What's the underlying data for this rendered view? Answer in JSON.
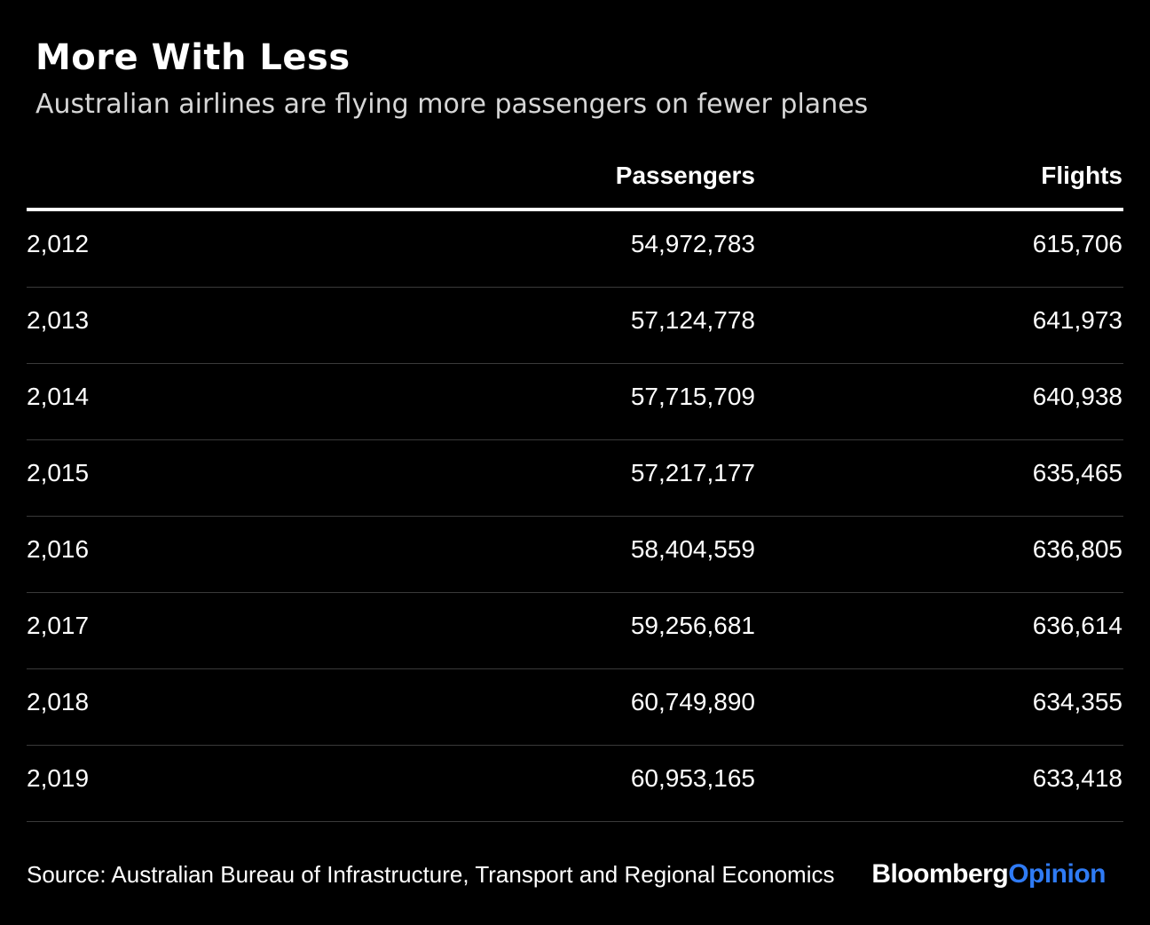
{
  "title": "More With Less",
  "subtitle": "Australian airlines are flying more passengers on fewer planes",
  "chart_data": {
    "type": "table",
    "title": "More With Less",
    "subtitle": "Australian airlines are flying more passengers on fewer planes",
    "columns": [
      "",
      "Passengers",
      "Flights"
    ],
    "rows": [
      {
        "year": "2,012",
        "passengers": "54,972,783",
        "flights": "615,706"
      },
      {
        "year": "2,013",
        "passengers": "57,124,778",
        "flights": "641,973"
      },
      {
        "year": "2,014",
        "passengers": "57,715,709",
        "flights": "640,938"
      },
      {
        "year": "2,015",
        "passengers": "57,217,177",
        "flights": "635,465"
      },
      {
        "year": "2,016",
        "passengers": "58,404,559",
        "flights": "636,805"
      },
      {
        "year": "2,017",
        "passengers": "59,256,681",
        "flights": "636,614"
      },
      {
        "year": "2,018",
        "passengers": "60,749,890",
        "flights": "634,355"
      },
      {
        "year": "2,019",
        "passengers": "60,953,165",
        "flights": "633,418"
      }
    ],
    "source": "Source: Australian Bureau of Infrastructure, Transport and Regional Economics"
  },
  "logo": {
    "brand": "Bloomberg",
    "suffix": "Opinion"
  },
  "colors": {
    "background": "#000000",
    "text": "#ffffff",
    "accent": "#2f7bf5",
    "divider": "#3a3a3a"
  }
}
